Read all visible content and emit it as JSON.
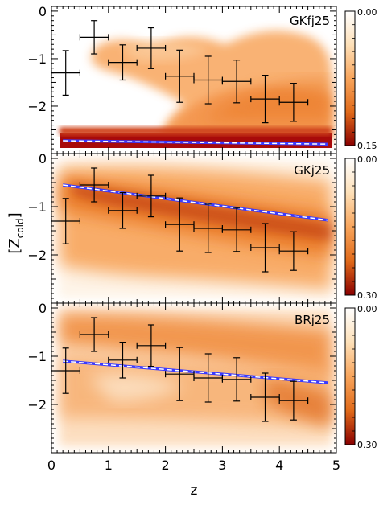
{
  "chart_data": {
    "type": "scatter",
    "xlabel": "z",
    "ylabel_main": "[Z",
    "ylabel_sub": "cold",
    "ylabel_close": "]",
    "xlim": [
      0,
      5
    ],
    "ylim": [
      -3.0,
      0.1
    ],
    "x_ticks": [
      "0",
      "1",
      "2",
      "3",
      "4",
      "5"
    ],
    "y_ticks": [
      "0",
      "−1",
      "−2"
    ],
    "observations": [
      {
        "x": 0.25,
        "xerr": 0.25,
        "y": -1.3,
        "yerr": 0.47
      },
      {
        "x": 0.75,
        "xerr": 0.25,
        "y": -0.55,
        "yerr": 0.35
      },
      {
        "x": 1.25,
        "xerr": 0.25,
        "y": -1.08,
        "yerr": 0.37
      },
      {
        "x": 1.75,
        "xerr": 0.25,
        "y": -0.78,
        "yerr": 0.43
      },
      {
        "x": 2.25,
        "xerr": 0.25,
        "y": -1.37,
        "yerr": 0.55
      },
      {
        "x": 2.75,
        "xerr": 0.25,
        "y": -1.45,
        "yerr": 0.5
      },
      {
        "x": 3.25,
        "xerr": 0.25,
        "y": -1.48,
        "yerr": 0.45
      },
      {
        "x": 3.75,
        "xerr": 0.25,
        "y": -1.85,
        "yerr": 0.5
      },
      {
        "x": 4.25,
        "xerr": 0.25,
        "y": -1.92,
        "yerr": 0.4
      }
    ],
    "panels": [
      {
        "label": "GKfj25",
        "colorbar_ticks": [
          "0.00",
          "0.15"
        ],
        "fit": {
          "x": [
            0.2,
            4.85
          ],
          "y": [
            -2.73,
            -2.8
          ]
        },
        "density_colors": [
          "#fdebd0",
          "#f8a55c",
          "#e8731f",
          "#a80a0a"
        ]
      },
      {
        "label": "GKj25",
        "colorbar_ticks": [
          "0.00",
          "0.30"
        ],
        "fit": {
          "x": [
            0.2,
            4.85
          ],
          "y": [
            -0.55,
            -1.28
          ]
        },
        "density_colors": [
          "#fdebd0",
          "#f8a55c",
          "#e8731f",
          "#a80a0a"
        ]
      },
      {
        "label": "BRj25",
        "colorbar_ticks": [
          "0.00",
          "0.30"
        ],
        "fit": {
          "x": [
            0.2,
            4.85
          ],
          "y": [
            -1.1,
            -1.55
          ]
        },
        "density_colors": [
          "#fdebd0",
          "#f8a55c",
          "#e8731f",
          "#a80a0a"
        ]
      }
    ],
    "colors": {
      "fit_line": "#3a3aff",
      "fit_dash": "#ffffff",
      "errorbar": "#000000"
    }
  }
}
